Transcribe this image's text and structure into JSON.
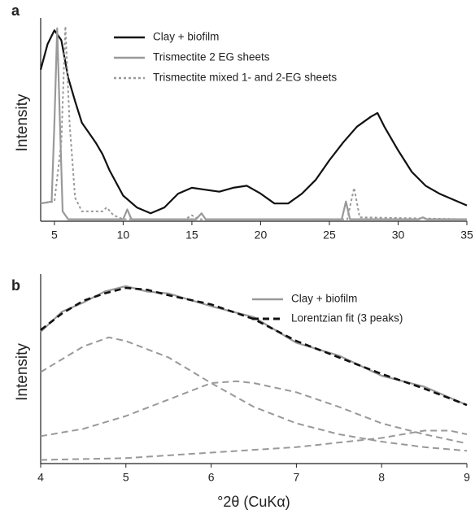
{
  "chart_data": [
    {
      "type": "line",
      "panel_label": "a",
      "ylabel": "Intensity",
      "xlim": [
        4,
        35
      ],
      "xticks": [
        5,
        10,
        15,
        20,
        25,
        30,
        35
      ],
      "ylim": [
        0,
        100
      ],
      "grid": false,
      "series": [
        {
          "name": "Clay + biofilm",
          "color": "#111111",
          "style": "solid",
          "width": 2.2,
          "x": [
            4,
            4.5,
            5,
            5.5,
            6,
            6.5,
            7,
            7.5,
            8,
            8.5,
            9,
            10,
            11,
            12,
            13,
            14,
            15,
            16,
            17,
            18,
            19,
            20,
            21,
            22,
            23,
            24,
            25,
            26,
            27,
            28,
            28.5,
            29,
            30,
            31,
            32,
            33,
            34,
            35
          ],
          "values": [
            77,
            90,
            97,
            92,
            73,
            61,
            50,
            45,
            40,
            34,
            26,
            13,
            7,
            4,
            7,
            14,
            17,
            16,
            15,
            17,
            18,
            14,
            9,
            9,
            14,
            21,
            31,
            40,
            48,
            53,
            55,
            48,
            36,
            25,
            18,
            14,
            11,
            8
          ]
        },
        {
          "name": "Trismectite 2 EG sheets",
          "color": "#999999",
          "style": "solid",
          "width": 2.2,
          "x": [
            4,
            4.8,
            5,
            5.2,
            5.4,
            5.6,
            6,
            10,
            10.3,
            10.6,
            15.3,
            15.7,
            16,
            25.9,
            26.2,
            26.5,
            31.5,
            31.8,
            32.1,
            35
          ],
          "values": [
            9,
            10,
            50,
            98,
            50,
            5,
            1,
            1,
            6,
            1,
            1,
            4,
            1,
            1,
            10,
            1,
            1,
            2,
            1,
            1
          ]
        },
        {
          "name": "Trismectite mixed 1- and 2-EG sheets",
          "color": "#999999",
          "style": "dotted",
          "width": 2,
          "x": [
            4,
            5,
            5.5,
            5.8,
            6.1,
            6.5,
            7,
            8.5,
            8.8,
            9.3,
            10,
            14.5,
            15,
            15.5,
            26.3,
            26.8,
            27.2,
            35
          ],
          "values": [
            9,
            10,
            40,
            99,
            50,
            12,
            5,
            5,
            7,
            3,
            1,
            1,
            3,
            1,
            1,
            17,
            2,
            1
          ]
        }
      ]
    },
    {
      "type": "line",
      "panel_label": "b",
      "ylabel": "Intensity",
      "xlabel": "°2θ (CuKα)",
      "xlim": [
        4,
        9
      ],
      "xticks": [
        4,
        5,
        6,
        7,
        8,
        9
      ],
      "ylim": [
        0,
        100
      ],
      "grid": false,
      "series": [
        {
          "name": "Clay + biofilm",
          "color": "#999999",
          "style": "solid",
          "width": 2.2,
          "x": [
            4,
            4.25,
            4.5,
            4.75,
            5,
            5.25,
            5.5,
            6,
            6.5,
            7,
            7.5,
            8,
            8.5,
            9
          ],
          "values": [
            72,
            83,
            88,
            94,
            97,
            94,
            93,
            86,
            80,
            66,
            59,
            48,
            42,
            32
          ]
        },
        {
          "name": "Lorentzian fit (3 peaks)",
          "color": "#111111",
          "style": "dashed",
          "width": 2.6,
          "x": [
            4,
            4.25,
            4.5,
            4.75,
            5,
            5.25,
            5.5,
            6,
            6.5,
            7,
            7.5,
            8,
            8.5,
            9
          ],
          "values": [
            73,
            82,
            89,
            93,
            96,
            95,
            92,
            87,
            79,
            67,
            58,
            49,
            41,
            32
          ]
        },
        {
          "color": "#999999",
          "style": "dashed",
          "width": 2,
          "x": [
            4,
            4.5,
            4.8,
            5,
            5.5,
            6,
            6.5,
            7,
            7.5,
            8,
            8.5,
            9
          ],
          "values": [
            50,
            64,
            69,
            67,
            58,
            44,
            31,
            22,
            16,
            12,
            9,
            7
          ]
        },
        {
          "color": "#999999",
          "style": "dashed",
          "width": 2,
          "x": [
            4,
            4.5,
            5,
            5.5,
            6,
            6.3,
            6.5,
            7,
            7.5,
            8,
            8.5,
            9
          ],
          "values": [
            15,
            19,
            26,
            35,
            44,
            45,
            44,
            39,
            31,
            22,
            16,
            11
          ]
        },
        {
          "color": "#999999",
          "style": "dashed",
          "width": 2,
          "x": [
            4,
            5,
            6,
            7,
            8,
            8.5,
            8.8,
            9
          ],
          "values": [
            2,
            3,
            6,
            9,
            14,
            18,
            18,
            16
          ]
        }
      ]
    }
  ]
}
